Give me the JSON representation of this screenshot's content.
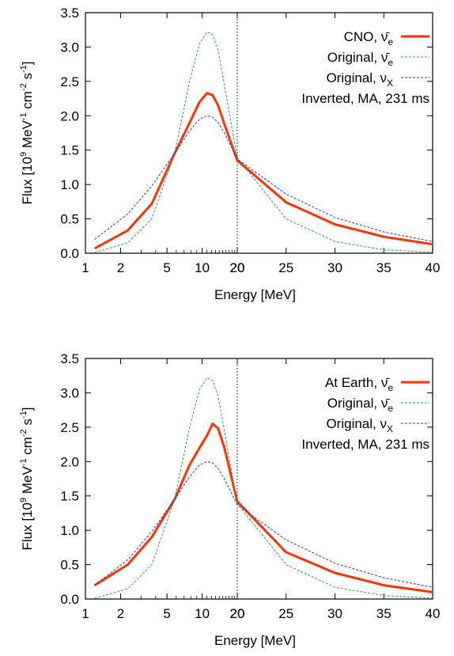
{
  "chart_data": [
    {
      "type": "line",
      "xlabel": "Energy [MeV]",
      "ylabel_parts": [
        "Flux [10",
        "9",
        " MeV",
        "-1",
        " cm",
        "-2",
        " s",
        "-1",
        "]"
      ],
      "ylim": [
        0,
        3.5
      ],
      "y_ticks": [
        "0.0",
        "0.5",
        "1.0",
        "1.5",
        "2.0",
        "2.5",
        "3.0",
        "3.5"
      ],
      "x_ticks_left": [
        "1",
        "2",
        "5",
        "10",
        "20"
      ],
      "x_ticks_right": [
        "20",
        "25",
        "30",
        "35",
        "40"
      ],
      "x_axis_note": "piecewise: log scale 1-20 MeV on left, linear scale 20-40 MeV on right, split marked by dotted line at 20",
      "split_at": 20,
      "annotation": "Inverted, MA, 231 ms",
      "legend_position": "top-right",
      "series": [
        {
          "name_main": "CNO, ",
          "name_nu": "ν̄",
          "name_sub": "e",
          "color": "#ff3300",
          "style": "thick-solid",
          "x": [
            1.2,
            2.3,
            3.7,
            5.8,
            7.8,
            9.5,
            11,
            12.3,
            13.7,
            15.5,
            20,
            25,
            30,
            35,
            40
          ],
          "y": [
            0.07,
            0.33,
            0.72,
            1.45,
            1.9,
            2.2,
            2.33,
            2.3,
            2.15,
            1.88,
            1.35,
            0.74,
            0.42,
            0.24,
            0.13
          ]
        },
        {
          "name_main": "Original, ",
          "name_nu": "ν̄",
          "name_sub": "e",
          "color": "#339966",
          "style": "dashed",
          "x": [
            1.2,
            2.3,
            3.7,
            5.8,
            7.8,
            9.5,
            11,
            12.3,
            13.7,
            15.5,
            20,
            25,
            30,
            35,
            40
          ],
          "y": [
            0.01,
            0.15,
            0.5,
            1.45,
            2.5,
            3.05,
            3.22,
            3.18,
            2.95,
            2.45,
            1.39,
            0.5,
            0.17,
            0.05,
            0.015
          ]
        },
        {
          "name_main": "Original, ",
          "name_nu": "ν",
          "name_sub": "X",
          "color": "#2233dd",
          "style": "dashed",
          "x": [
            1.2,
            2.3,
            3.7,
            5.8,
            7.8,
            9.5,
            11,
            12.3,
            13.7,
            15.5,
            20,
            25,
            30,
            35,
            40
          ],
          "y": [
            0.2,
            0.57,
            0.98,
            1.45,
            1.78,
            1.95,
            2.0,
            1.98,
            1.9,
            1.75,
            1.37,
            0.86,
            0.52,
            0.31,
            0.17
          ]
        }
      ]
    },
    {
      "type": "line",
      "xlabel": "Energy [MeV]",
      "ylabel_parts": [
        "Flux [10",
        "9",
        " MeV",
        "-1",
        " cm",
        "-2",
        " s",
        "-1",
        "]"
      ],
      "ylim": [
        0,
        3.5
      ],
      "y_ticks": [
        "0.0",
        "0.5",
        "1.0",
        "1.5",
        "2.0",
        "2.5",
        "3.0",
        "3.5"
      ],
      "x_ticks_left": [
        "1",
        "2",
        "5",
        "10",
        "20"
      ],
      "x_ticks_right": [
        "20",
        "25",
        "30",
        "35",
        "40"
      ],
      "split_at": 20,
      "annotation": "Inverted, MA, 231 ms",
      "legend_position": "top-right",
      "series": [
        {
          "name_main": "At Earth, ",
          "name_nu": "ν̄",
          "name_sub": "e",
          "color": "#ff3300",
          "style": "thick-solid",
          "x": [
            1.2,
            2.3,
            3.7,
            5.8,
            7.8,
            9.5,
            11,
            12.3,
            13.7,
            15.5,
            20,
            25,
            30,
            35,
            40
          ],
          "y": [
            0.2,
            0.5,
            0.9,
            1.45,
            1.95,
            2.2,
            2.38,
            2.55,
            2.48,
            2.2,
            1.42,
            0.68,
            0.38,
            0.2,
            0.1
          ]
        },
        {
          "name_main": "Original, ",
          "name_nu": "ν̄",
          "name_sub": "e",
          "color": "#339966",
          "style": "dashed",
          "x": [
            1.2,
            2.3,
            3.7,
            5.8,
            7.8,
            9.5,
            11,
            12.3,
            13.7,
            15.5,
            20,
            25,
            30,
            35,
            40
          ],
          "y": [
            0.01,
            0.15,
            0.5,
            1.45,
            2.5,
            3.05,
            3.22,
            3.18,
            2.95,
            2.45,
            1.39,
            0.5,
            0.17,
            0.05,
            0.015
          ]
        },
        {
          "name_main": "Original, ",
          "name_nu": "ν",
          "name_sub": "X",
          "color": "#2233dd",
          "style": "dashed",
          "x": [
            1.2,
            2.3,
            3.7,
            5.8,
            7.8,
            9.5,
            11,
            12.3,
            13.7,
            15.5,
            20,
            25,
            30,
            35,
            40
          ],
          "y": [
            0.2,
            0.57,
            0.98,
            1.45,
            1.78,
            1.95,
            2.0,
            1.98,
            1.9,
            1.75,
            1.37,
            0.86,
            0.52,
            0.31,
            0.17
          ]
        }
      ]
    }
  ]
}
